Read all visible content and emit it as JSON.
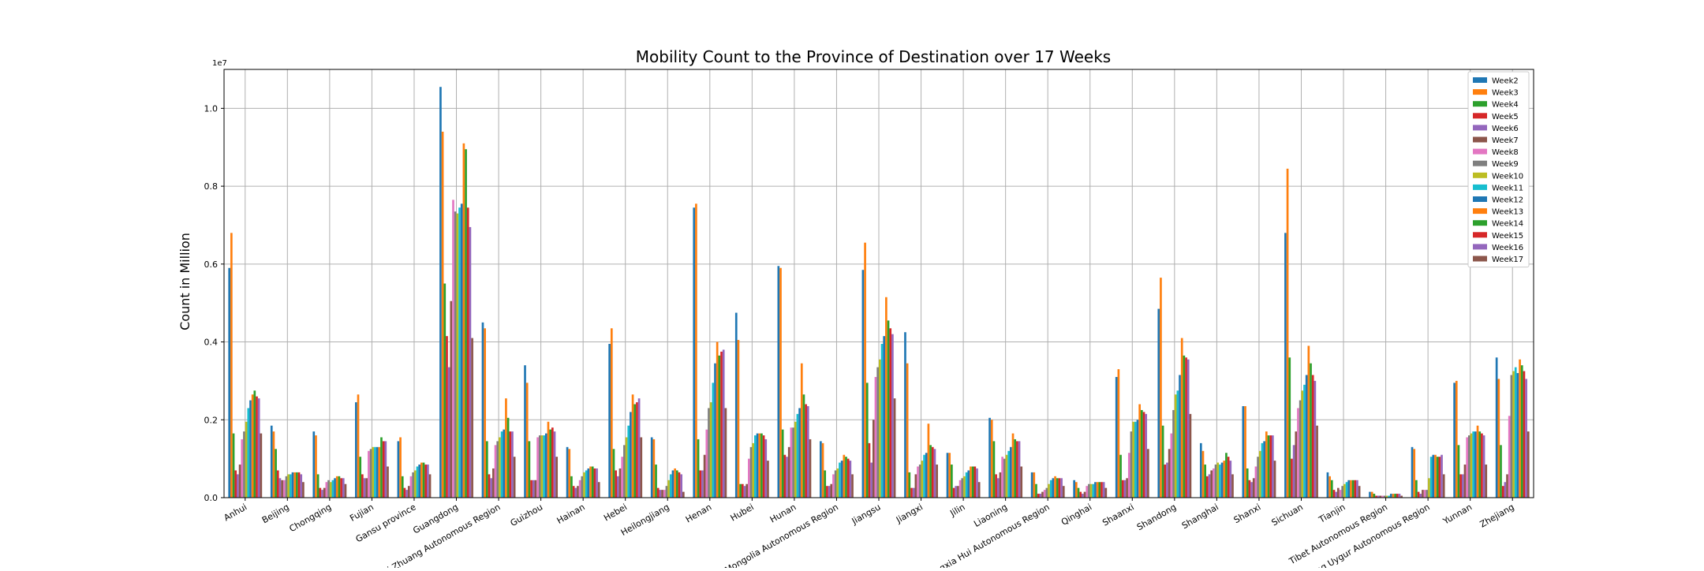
{
  "chart_data": {
    "type": "bar",
    "title": "Mobility Count to the Province of Destination over 17 Weeks",
    "xlabel": "",
    "ylabel": "Count in Million",
    "y_offset_label": "1e7",
    "ylim": [
      0,
      11000000
    ],
    "yticks": [
      0,
      2000000,
      4000000,
      6000000,
      8000000,
      10000000
    ],
    "ytick_labels": [
      "0.0",
      "0.2",
      "0.4",
      "0.6",
      "0.8",
      "1.0"
    ],
    "grid": true,
    "legend_position": "top-right",
    "categories": [
      "Anhui",
      "Beijing",
      "Chongqing",
      "Fujian",
      "Gansu province",
      "Guangdong",
      "Guangxi Zhuang Autonomous Region",
      "Guizhou",
      "Hainan",
      "Hebei",
      "Heilongjiang",
      "Henan",
      "Hubei",
      "Hunan",
      "Inner Mongolia Autonomous Region",
      "Jiangsu",
      "Jiangxi",
      "Jilin",
      "Liaoning",
      "Ningxia Hui Autonomous Region",
      "Qinghai",
      "Shaanxi",
      "Shandong",
      "Shanghai",
      "Shanxi",
      "Sichuan",
      "Tianjin",
      "Tibet Autonomous Region",
      "Xinjiang Uygur Autonomous Region",
      "Yunnan",
      "Zhejiang"
    ],
    "series": [
      {
        "name": "Week2",
        "color": "#1f77b4",
        "values": [
          5900000,
          1850000,
          1700000,
          2450000,
          1450000,
          10550000,
          4500000,
          3400000,
          1300000,
          3950000,
          1550000,
          7450000,
          4750000,
          5950000,
          1450000,
          5850000,
          4250000,
          1150000,
          2050000,
          650000,
          450000,
          3100000,
          4850000,
          1400000,
          2350000,
          6800000,
          650000,
          150000,
          1300000,
          2950000,
          3600000
        ]
      },
      {
        "name": "Week3",
        "color": "#ff7f0e",
        "values": [
          6800000,
          1700000,
          1600000,
          2650000,
          1550000,
          9400000,
          4350000,
          2950000,
          1250000,
          4350000,
          1500000,
          7550000,
          4050000,
          5900000,
          1400000,
          6550000,
          3450000,
          1150000,
          2000000,
          650000,
          400000,
          3300000,
          5650000,
          1200000,
          2350000,
          8450000,
          550000,
          150000,
          1250000,
          3000000,
          3050000
        ]
      },
      {
        "name": "Week4",
        "color": "#2ca02c",
        "values": [
          1650000,
          1250000,
          600000,
          1050000,
          550000,
          5500000,
          1450000,
          1450000,
          550000,
          1250000,
          850000,
          1500000,
          350000,
          1750000,
          700000,
          2950000,
          650000,
          850000,
          1450000,
          350000,
          250000,
          1100000,
          1850000,
          850000,
          750000,
          3600000,
          450000,
          100000,
          450000,
          1350000,
          1350000
        ]
      },
      {
        "name": "Week5",
        "color": "#d62728",
        "values": [
          700000,
          700000,
          250000,
          600000,
          250000,
          4150000,
          600000,
          450000,
          300000,
          700000,
          250000,
          700000,
          350000,
          1100000,
          300000,
          1400000,
          250000,
          250000,
          600000,
          100000,
          150000,
          450000,
          850000,
          550000,
          450000,
          1000000,
          200000,
          50000,
          150000,
          600000,
          300000
        ]
      },
      {
        "name": "Week6",
        "color": "#9467bd",
        "values": [
          600000,
          500000,
          200000,
          500000,
          200000,
          3350000,
          500000,
          450000,
          250000,
          550000,
          200000,
          700000,
          300000,
          1050000,
          300000,
          900000,
          250000,
          300000,
          500000,
          100000,
          100000,
          450000,
          900000,
          600000,
          400000,
          1350000,
          150000,
          50000,
          100000,
          600000,
          400000
        ]
      },
      {
        "name": "Week7",
        "color": "#8c564b",
        "values": [
          850000,
          450000,
          250000,
          500000,
          300000,
          5050000,
          750000,
          450000,
          300000,
          750000,
          200000,
          1100000,
          350000,
          1300000,
          350000,
          2000000,
          600000,
          300000,
          650000,
          150000,
          150000,
          500000,
          1250000,
          700000,
          500000,
          1700000,
          250000,
          50000,
          200000,
          850000,
          600000
        ]
      },
      {
        "name": "Week8",
        "color": "#e377c2",
        "values": [
          1500000,
          450000,
          400000,
          1200000,
          550000,
          7650000,
          1350000,
          1550000,
          450000,
          1050000,
          200000,
          1750000,
          1000000,
          1800000,
          600000,
          3100000,
          800000,
          450000,
          1050000,
          200000,
          300000,
          1150000,
          1650000,
          750000,
          800000,
          2300000,
          200000,
          50000,
          200000,
          1550000,
          2100000
        ]
      },
      {
        "name": "Week9",
        "color": "#7f7f7f",
        "values": [
          1700000,
          550000,
          450000,
          1250000,
          650000,
          7350000,
          1450000,
          1600000,
          550000,
          1350000,
          300000,
          2300000,
          1300000,
          1800000,
          700000,
          3350000,
          850000,
          500000,
          1000000,
          250000,
          350000,
          1700000,
          2250000,
          850000,
          1050000,
          2500000,
          300000,
          50000,
          200000,
          1600000,
          3150000
        ]
      },
      {
        "name": "Week10",
        "color": "#bcbd22",
        "values": [
          1950000,
          600000,
          400000,
          1300000,
          700000,
          7300000,
          1550000,
          1600000,
          650000,
          1550000,
          450000,
          2450000,
          1400000,
          1950000,
          750000,
          3550000,
          950000,
          550000,
          1100000,
          350000,
          350000,
          1950000,
          2650000,
          900000,
          1200000,
          2750000,
          350000,
          50000,
          500000,
          1650000,
          3250000
        ]
      },
      {
        "name": "Week11",
        "color": "#17becf",
        "values": [
          2300000,
          600000,
          450000,
          1300000,
          800000,
          7450000,
          1700000,
          1600000,
          700000,
          1850000,
          600000,
          2950000,
          1600000,
          2150000,
          900000,
          3950000,
          1100000,
          650000,
          1200000,
          450000,
          350000,
          1950000,
          2750000,
          850000,
          1400000,
          2900000,
          400000,
          50000,
          1050000,
          1700000,
          3350000
        ]
      },
      {
        "name": "Week12",
        "color": "#1f77b4",
        "values": [
          2500000,
          650000,
          500000,
          1300000,
          850000,
          7550000,
          1750000,
          1650000,
          750000,
          2200000,
          700000,
          3450000,
          1650000,
          2300000,
          950000,
          4150000,
          1150000,
          700000,
          1300000,
          500000,
          400000,
          2000000,
          3150000,
          900000,
          1450000,
          3150000,
          450000,
          100000,
          1100000,
          1700000,
          3200000
        ]
      },
      {
        "name": "Week13",
        "color": "#ff7f0e",
        "values": [
          2650000,
          650000,
          550000,
          1300000,
          900000,
          9100000,
          2550000,
          1950000,
          800000,
          2650000,
          750000,
          4000000,
          1650000,
          3450000,
          1100000,
          5150000,
          1900000,
          800000,
          1650000,
          550000,
          400000,
          2400000,
          4100000,
          950000,
          1700000,
          3900000,
          450000,
          100000,
          1100000,
          1850000,
          3550000
        ]
      },
      {
        "name": "Week14",
        "color": "#2ca02c",
        "values": [
          2750000,
          650000,
          550000,
          1550000,
          900000,
          8950000,
          2050000,
          1750000,
          800000,
          2400000,
          700000,
          3650000,
          1650000,
          2650000,
          1050000,
          4550000,
          1350000,
          800000,
          1500000,
          500000,
          400000,
          2250000,
          3650000,
          1150000,
          1600000,
          3450000,
          450000,
          100000,
          1050000,
          1700000,
          3400000
        ]
      },
      {
        "name": "Week15",
        "color": "#d62728",
        "values": [
          2600000,
          650000,
          500000,
          1450000,
          850000,
          7450000,
          1700000,
          1800000,
          750000,
          2450000,
          650000,
          3750000,
          1600000,
          2400000,
          1000000,
          4350000,
          1300000,
          800000,
          1450000,
          500000,
          400000,
          2200000,
          3600000,
          1050000,
          1600000,
          3150000,
          450000,
          100000,
          1050000,
          1650000,
          3250000
        ]
      },
      {
        "name": "Week16",
        "color": "#9467bd",
        "values": [
          2550000,
          600000,
          500000,
          1450000,
          850000,
          6950000,
          1700000,
          1700000,
          750000,
          2550000,
          600000,
          3800000,
          1500000,
          2350000,
          950000,
          4200000,
          1250000,
          750000,
          1450000,
          500000,
          400000,
          2150000,
          3550000,
          950000,
          1600000,
          3000000,
          450000,
          100000,
          1100000,
          1600000,
          3050000
        ]
      },
      {
        "name": "Week17",
        "color": "#8c564b",
        "values": [
          1650000,
          400000,
          350000,
          800000,
          600000,
          4100000,
          1050000,
          1050000,
          400000,
          1550000,
          150000,
          2300000,
          950000,
          1500000,
          600000,
          2550000,
          850000,
          400000,
          800000,
          300000,
          250000,
          1250000,
          2150000,
          600000,
          950000,
          1850000,
          300000,
          50000,
          600000,
          850000,
          1700000
        ]
      }
    ]
  }
}
